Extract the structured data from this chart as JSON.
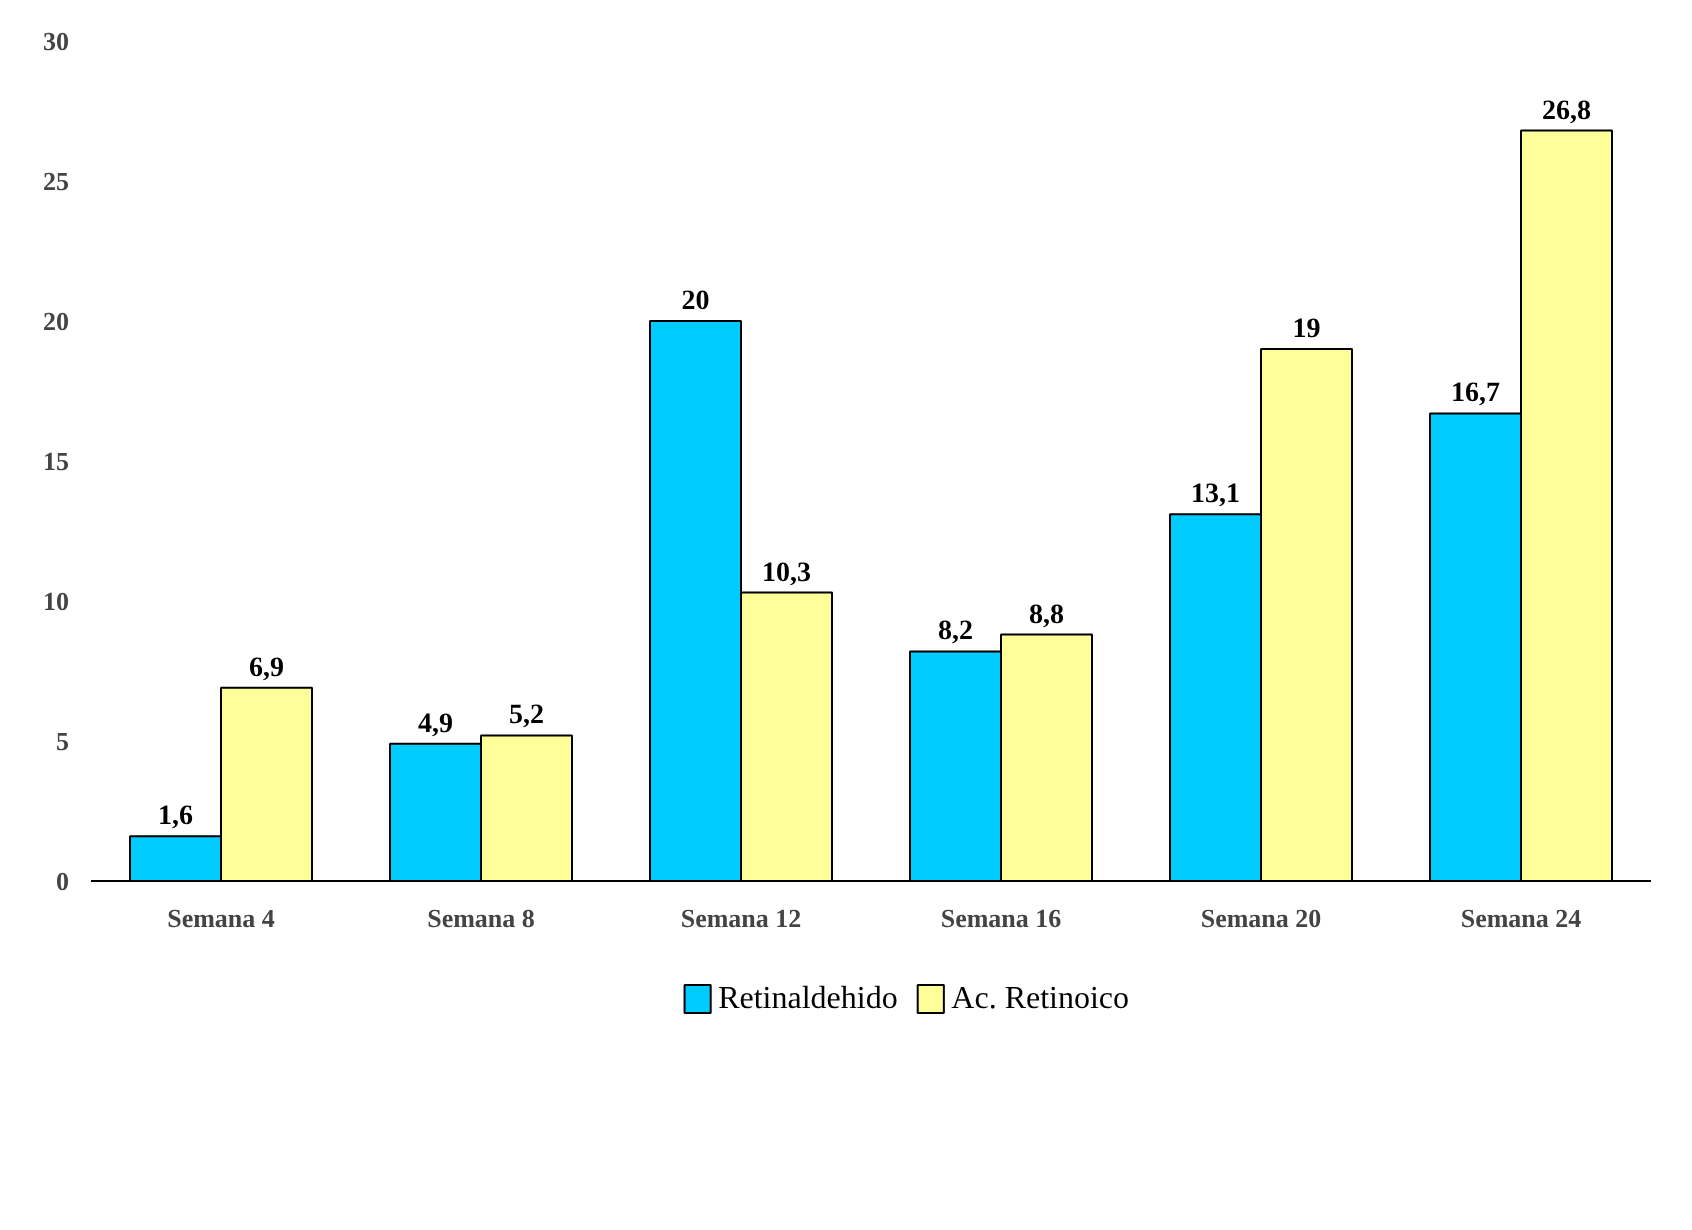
{
  "chart_data": {
    "type": "bar",
    "categories": [
      "Semana 4",
      "Semana 8",
      "Semana 12",
      "Semana 16",
      "Semana 20",
      "Semana 24"
    ],
    "series": [
      {
        "name": "Retinaldehido",
        "color": "#00ccff",
        "values": [
          1.6,
          4.9,
          20,
          8.2,
          13.1,
          16.7
        ],
        "value_labels": [
          "1,6",
          "4,9",
          "20",
          "8,2",
          "13,1",
          "16,7"
        ]
      },
      {
        "name": "Ac. Retinoico",
        "color": "#ffff99",
        "values": [
          6.9,
          5.2,
          10.3,
          8.8,
          19,
          26.8
        ],
        "value_labels": [
          "6,9",
          "5,2",
          "10,3",
          "8,8",
          "19",
          "26,8"
        ]
      }
    ],
    "ylim": [
      0,
      30
    ],
    "yticks": [
      0,
      5,
      10,
      15,
      20,
      25,
      30
    ],
    "grid": false,
    "legend": "bottom"
  }
}
